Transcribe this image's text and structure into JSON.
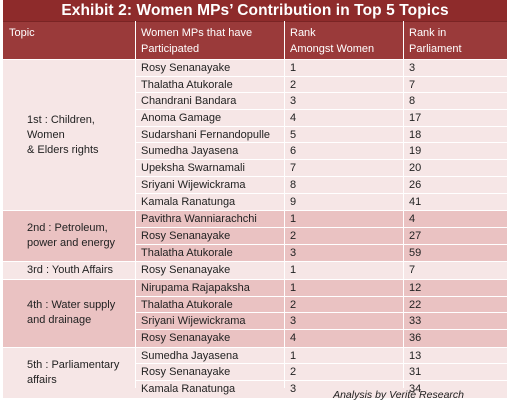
{
  "title": "Exhibit 2: Women MPs’ Contribution in Top 5 Topics",
  "columns": {
    "topic": "Topic",
    "women": [
      "Women MPs that have",
      "Participated"
    ],
    "rank_women": [
      "Rank",
      "Amongst Women"
    ],
    "rank_parliament": [
      "Rank in",
      "Parliament"
    ]
  },
  "groups": [
    {
      "topic": [
        "1st : Children, Women",
        "& Elders rights"
      ],
      "rows": [
        {
          "name": "Rosy Senanayake",
          "rank": "1",
          "parl": "3"
        },
        {
          "name": "Thalatha Atukorale",
          "rank": "2",
          "parl": "7"
        },
        {
          "name": "Chandrani Bandara",
          "rank": "3",
          "parl": "8"
        },
        {
          "name": "Anoma Gamage",
          "rank": "4",
          "parl": "17"
        },
        {
          "name": "Sudarshani Fernandopulle",
          "rank": "5",
          "parl": "18"
        },
        {
          "name": "Sumedha Jayasena",
          "rank": "6",
          "parl": "19"
        },
        {
          "name": "Upeksha Swarnamali",
          "rank": "7",
          "parl": "20"
        },
        {
          "name": "Sriyani Wijewickrama",
          "rank": "8",
          "parl": "26"
        },
        {
          "name": "Kamala Ranatunga",
          "rank": "9",
          "parl": "41"
        }
      ]
    },
    {
      "topic": [
        "2nd : Petroleum,",
        "power and energy"
      ],
      "rows": [
        {
          "name": "Pavithra Wanniarachchi",
          "rank": "1",
          "parl": "4"
        },
        {
          "name": "Rosy Senanayake",
          "rank": "2",
          "parl": "27"
        },
        {
          "name": "Thalatha Atukorale",
          "rank": "3",
          "parl": "59"
        }
      ]
    },
    {
      "topic": [
        "3rd : Youth Affairs"
      ],
      "rows": [
        {
          "name": "Rosy Senanayake",
          "rank": "1",
          "parl": "7"
        }
      ]
    },
    {
      "topic": [
        "4th : Water supply",
        "and drainage"
      ],
      "rows": [
        {
          "name": "Nirupama Rajapaksha",
          "rank": "1",
          "parl": "12"
        },
        {
          "name": "Thalatha Atukorale",
          "rank": "2",
          "parl": "22"
        },
        {
          "name": "Sriyani Wijewickrama",
          "rank": "3",
          "parl": "33"
        },
        {
          "name": "Rosy Senanayake",
          "rank": "4",
          "parl": "36"
        }
      ]
    },
    {
      "topic": [
        "5th : Parliamentary",
        "affairs"
      ],
      "rows": [
        {
          "name": "Sumedha Jayasena",
          "rank": "1",
          "parl": "13"
        },
        {
          "name": "Rosy Senanayake",
          "rank": "2",
          "parl": "31"
        },
        {
          "name": "Kamala Ranatunga",
          "rank": "3",
          "parl": "34"
        }
      ]
    }
  ],
  "footer": "Analysis by Verité Research"
}
